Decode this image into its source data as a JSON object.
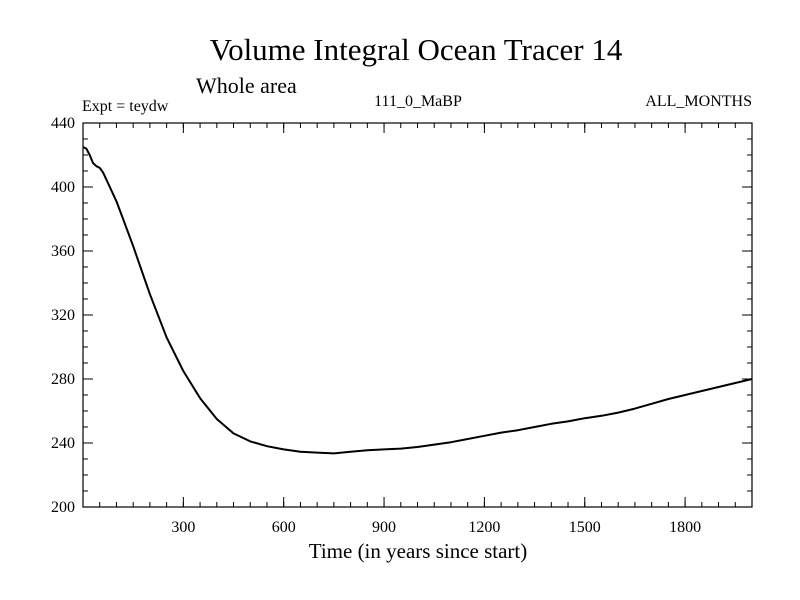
{
  "chart_data": {
    "type": "line",
    "title": "Volume Integral Ocean Tracer 14",
    "subtitle": "Whole area",
    "left_label": "Expt = teydw",
    "center_label": "111_0_MaBP",
    "right_label": "ALL_MONTHS",
    "xlabel": "Time (in years since start)",
    "ylabel": "",
    "xlim": [
      0,
      2000
    ],
    "ylim": [
      200,
      440
    ],
    "xticks": [
      300,
      600,
      900,
      1200,
      1500,
      1800
    ],
    "yticks": [
      200,
      240,
      280,
      320,
      360,
      400,
      440
    ],
    "xticklabels": [
      "300",
      "600",
      "900",
      "1200",
      "1500",
      "1800"
    ],
    "yticklabels": [
      "200",
      "240",
      "280",
      "320",
      "360",
      "400",
      "440"
    ],
    "x_minor_step": 50,
    "y_minor_step": 10,
    "series": [
      {
        "name": "Volume Integral Ocean Tracer 14",
        "x": [
          0,
          10,
          20,
          30,
          40,
          50,
          60,
          80,
          100,
          120,
          150,
          180,
          200,
          250,
          300,
          350,
          400,
          450,
          500,
          550,
          600,
          650,
          700,
          750,
          800,
          850,
          900,
          950,
          1000,
          1050,
          1100,
          1150,
          1200,
          1250,
          1300,
          1350,
          1400,
          1450,
          1500,
          1550,
          1600,
          1650,
          1700,
          1750,
          1800,
          1850,
          1900,
          1950,
          2000
        ],
        "y": [
          425,
          424,
          420,
          415,
          413,
          412,
          409,
          400,
          391,
          380,
          363,
          345,
          333,
          306,
          285,
          268,
          255,
          246,
          241,
          238,
          236,
          234.5,
          234,
          233.5,
          234.5,
          235.5,
          236,
          236.5,
          237.5,
          239,
          240.5,
          242.5,
          244.5,
          246.5,
          248,
          250,
          252,
          253.5,
          255.5,
          257,
          259,
          261.5,
          264.5,
          267.5,
          270,
          272.5,
          275,
          277.5,
          280
        ]
      }
    ]
  }
}
